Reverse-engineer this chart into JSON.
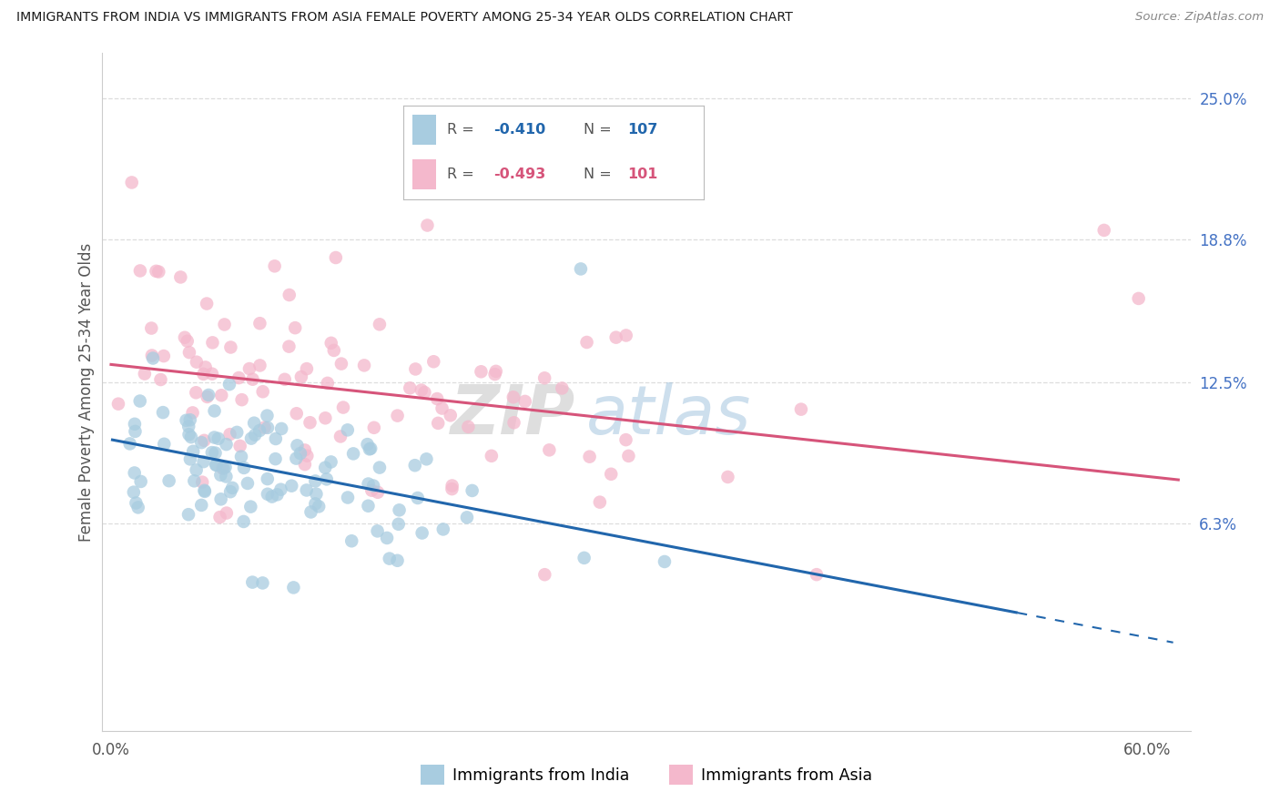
{
  "title": "IMMIGRANTS FROM INDIA VS IMMIGRANTS FROM ASIA FEMALE POVERTY AMONG 25-34 YEAR OLDS CORRELATION CHART",
  "source": "Source: ZipAtlas.com",
  "ylabel": "Female Poverty Among 25-34 Year Olds",
  "ytick_labels": [
    "6.3%",
    "12.5%",
    "18.8%",
    "25.0%"
  ],
  "ytick_values": [
    0.063,
    0.125,
    0.188,
    0.25
  ],
  "xlim": [
    -0.005,
    0.625
  ],
  "ylim": [
    -0.028,
    0.27
  ],
  "india_color": "#a8cce0",
  "asia_color": "#f4b8cc",
  "india_R": -0.41,
  "india_N": 107,
  "asia_R": -0.493,
  "asia_N": 101,
  "india_line_color": "#2166ac",
  "asia_line_color": "#d6547a",
  "background_color": "#ffffff",
  "grid_color": "#dddddd",
  "right_tick_color": "#4472c4"
}
